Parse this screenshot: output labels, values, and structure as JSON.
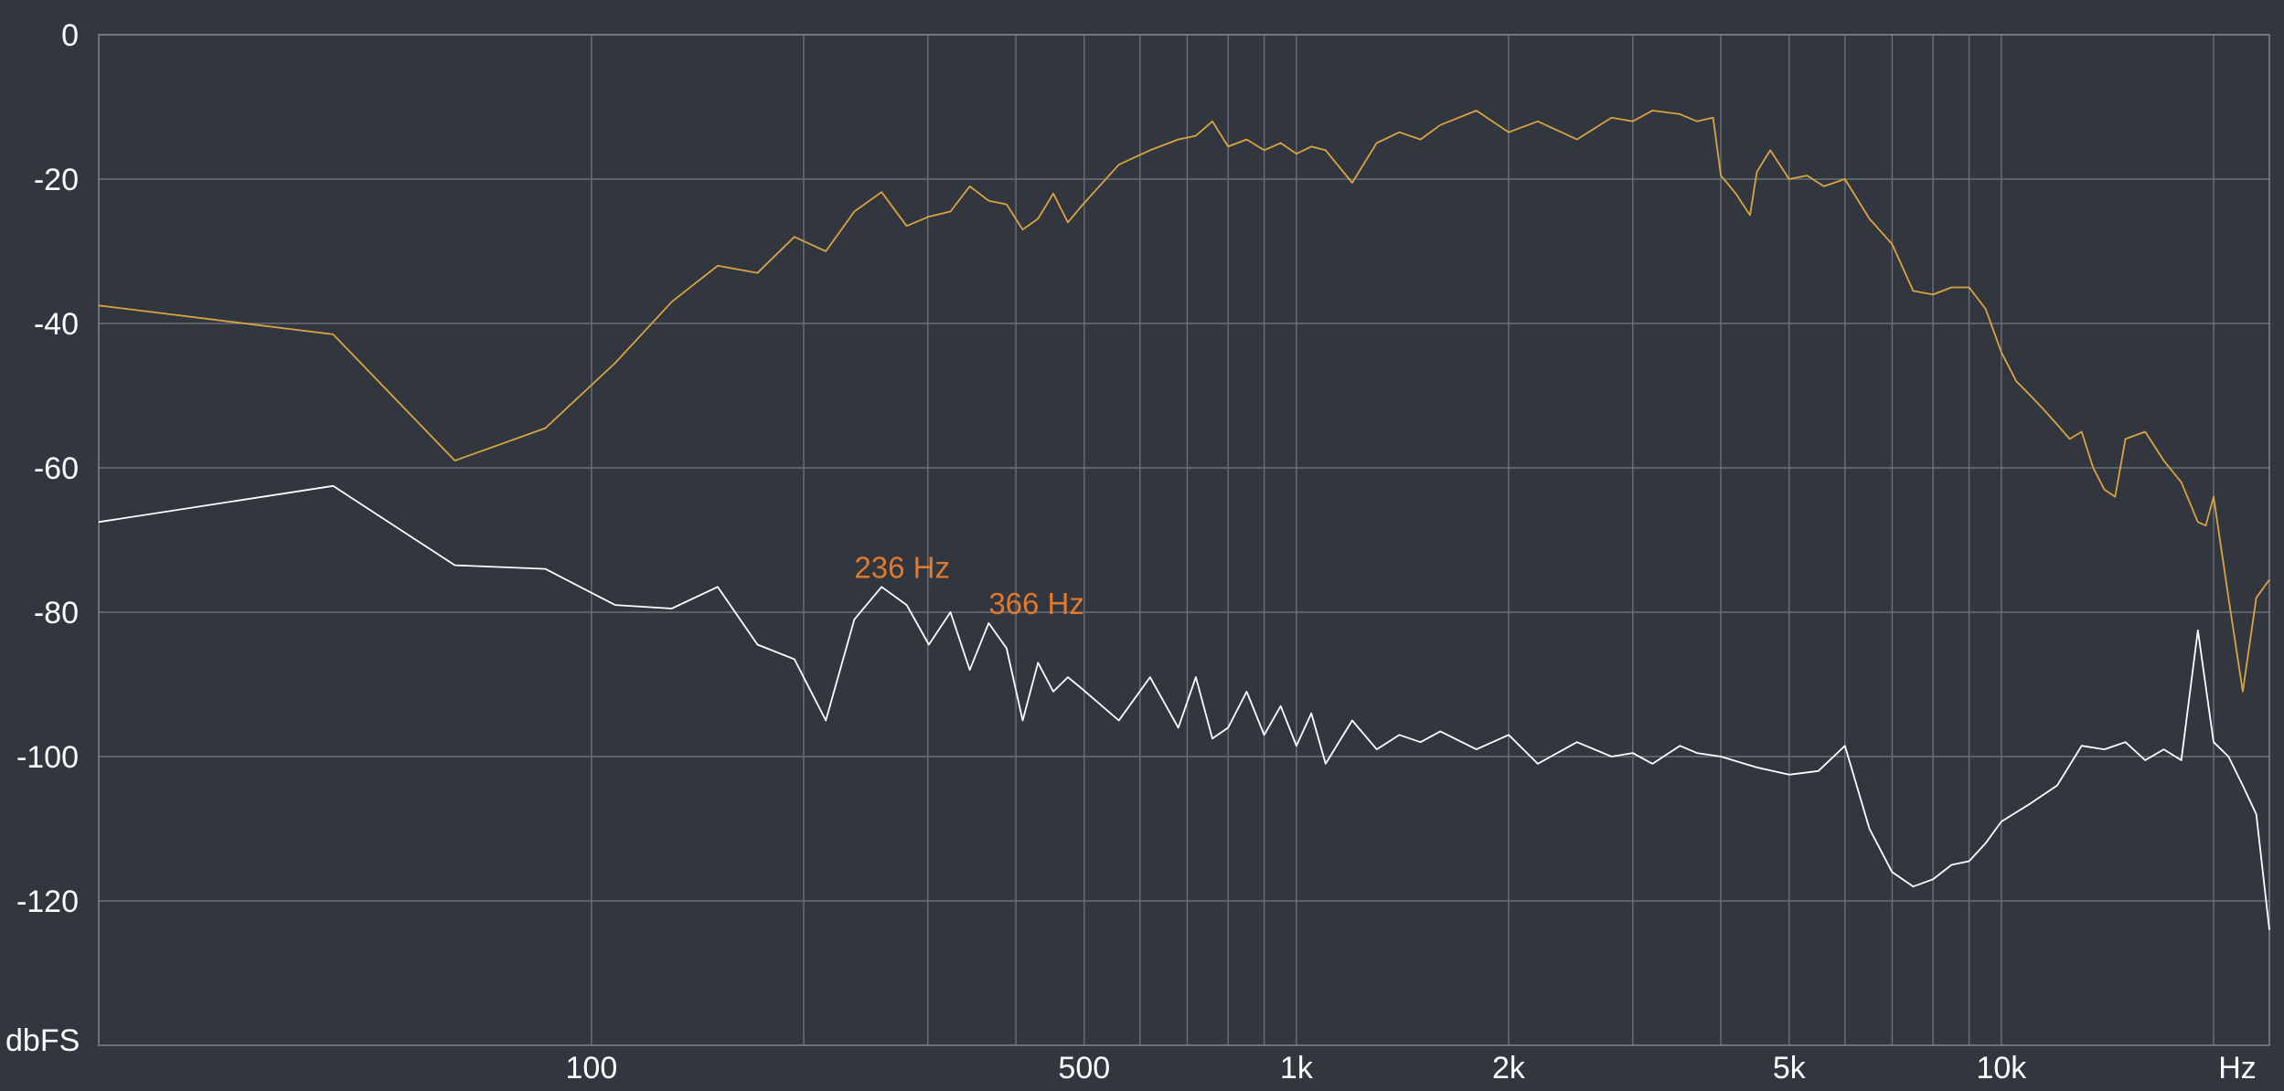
{
  "chart_data": {
    "type": "line",
    "title": "",
    "xlabel": "Hz",
    "ylabel": "dbFS",
    "x_scale": "log",
    "xlim": [
      20,
      24000
    ],
    "ylim": [
      -140,
      0
    ],
    "grid": true,
    "y_ticks": [
      0,
      -20,
      -40,
      -60,
      -80,
      -100,
      -120
    ],
    "x_grid_values": [
      100,
      200,
      300,
      400,
      500,
      600,
      700,
      800,
      900,
      1000,
      2000,
      3000,
      4000,
      5000,
      6000,
      7000,
      8000,
      9000,
      10000,
      20000
    ],
    "x_tick_labels": [
      {
        "value": 100,
        "label": "100"
      },
      {
        "value": 500,
        "label": "500"
      },
      {
        "value": 1000,
        "label": "1k"
      },
      {
        "value": 2000,
        "label": "2k"
      },
      {
        "value": 5000,
        "label": "5k"
      },
      {
        "value": 10000,
        "label": "10k"
      }
    ],
    "annotations": [
      {
        "x": 236,
        "y": -77,
        "text": "236 Hz"
      },
      {
        "x": 366,
        "y": -82,
        "text": "366 Hz"
      }
    ],
    "series": [
      {
        "color": "#d9a441",
        "x": [
          20,
          43,
          64,
          86,
          108,
          130,
          151,
          172,
          194,
          215,
          236,
          258,
          280,
          301,
          323,
          344,
          366,
          388,
          409,
          430,
          452,
          474,
          495,
          560,
          620,
          680,
          720,
          760,
          800,
          850,
          900,
          950,
          1000,
          1050,
          1100,
          1200,
          1300,
          1400,
          1500,
          1600,
          1800,
          2000,
          2200,
          2500,
          2800,
          3000,
          3200,
          3500,
          3700,
          3900,
          4000,
          4200,
          4400,
          4500,
          4700,
          5000,
          5300,
          5600,
          6000,
          6500,
          7000,
          7500,
          8000,
          8500,
          9000,
          9500,
          10000,
          10500,
          11000,
          11500,
          12000,
          12500,
          13000,
          13500,
          14000,
          14500,
          15000,
          16000,
          17000,
          18000,
          19000,
          19500,
          20000,
          21000,
          22000,
          23000,
          24000
        ],
        "values": [
          -37.5,
          -41.5,
          -59,
          -54.5,
          -45.5,
          -37,
          -32,
          -33,
          -28,
          -30,
          -24.5,
          -21.8,
          -26.5,
          -25.2,
          -24.5,
          -21,
          -23,
          -23.5,
          -27,
          -25.5,
          -22,
          -26,
          -23.8,
          -18,
          -16,
          -14.5,
          -14,
          -12,
          -15.5,
          -14.5,
          -16,
          -15,
          -16.5,
          -15.5,
          -16,
          -20.5,
          -15,
          -13.5,
          -14.5,
          -12.5,
          -10.5,
          -13.5,
          -12,
          -14.5,
          -11.5,
          -12,
          -10.5,
          -11,
          -12,
          -11.5,
          -19.5,
          -22,
          -25,
          -19,
          -16,
          -20,
          -19.5,
          -21,
          -20,
          -25.5,
          -29,
          -35.5,
          -36,
          -35,
          -35,
          -38,
          -44,
          -48,
          -50,
          -52,
          -54,
          -56,
          -55,
          -60,
          -63,
          -64,
          -56,
          -55,
          -59,
          -62,
          -67.5,
          -68,
          -64,
          -78,
          -91,
          -78,
          -75.5
        ]
      },
      {
        "color": "#ffffff",
        "x": [
          20,
          43,
          64,
          86,
          108,
          130,
          151,
          172,
          194,
          215,
          236,
          258,
          280,
          301,
          323,
          344,
          366,
          388,
          409,
          430,
          452,
          474,
          495,
          560,
          620,
          680,
          720,
          760,
          800,
          850,
          900,
          950,
          1000,
          1050,
          1100,
          1200,
          1300,
          1400,
          1500,
          1600,
          1800,
          2000,
          2200,
          2500,
          2800,
          3000,
          3200,
          3500,
          3700,
          4000,
          4500,
          5000,
          5500,
          6000,
          6500,
          7000,
          7500,
          8000,
          8500,
          9000,
          9500,
          10000,
          11000,
          12000,
          13000,
          14000,
          15000,
          16000,
          17000,
          18000,
          19000,
          20000,
          21000,
          22000,
          23000,
          24000
        ],
        "values": [
          -67.5,
          -62.5,
          -73.5,
          -74,
          -79,
          -79.5,
          -76.5,
          -84.5,
          -86.5,
          -95,
          -81,
          -76.5,
          -79,
          -84.5,
          -80,
          -88,
          -81.5,
          -85,
          -95,
          -87,
          -91,
          -89,
          -90.5,
          -95,
          -89,
          -96,
          -89,
          -97.5,
          -96,
          -91,
          -97,
          -93,
          -98.5,
          -94,
          -101,
          -95,
          -99,
          -97,
          -98,
          -96.5,
          -99,
          -97,
          -101,
          -98,
          -100,
          -99.5,
          -101,
          -98.5,
          -99.5,
          -100,
          -101.5,
          -102.5,
          -102,
          -98.5,
          -110,
          -116,
          -118,
          -117,
          -115,
          -114.5,
          -112,
          -109,
          -106.5,
          -104,
          -98.5,
          -99,
          -98,
          -100.5,
          -99,
          -100.5,
          -82.5,
          -98,
          -100,
          -104,
          -108,
          -124
        ]
      }
    ]
  }
}
